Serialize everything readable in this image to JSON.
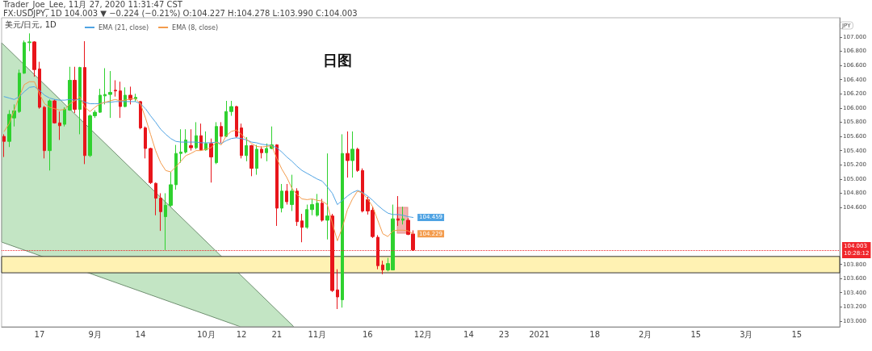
{
  "chart_data": {
    "type": "candlestick",
    "title": "日图",
    "legend_title": "美元/日元, 1D",
    "ylabel": "JPY",
    "annotations": [
      "Trader_Joe_Lee, 11月 27, 2020 11:31:47 CST",
      "FX:USDJPY, 1D 104.003 ▼ −0.224 (−0.21%) O:104.227 H:104.278 L:103.990 C:104.003"
    ],
    "categories": [
      null,
      null,
      null,
      null,
      null,
      null,
      null,
      "17",
      null,
      null,
      null,
      null,
      null,
      null,
      null,
      null,
      null,
      null,
      "9月",
      null,
      null,
      null,
      null,
      null,
      null,
      null,
      null,
      "14",
      null,
      null,
      null,
      null,
      null,
      null,
      null,
      null,
      null,
      null,
      null,
      null,
      "10月",
      null,
      null,
      null,
      null,
      null,
      null,
      "12",
      null,
      null,
      null,
      null,
      null,
      null,
      "21",
      null,
      null,
      null,
      null,
      null,
      null,
      null,
      "11月",
      null,
      null,
      null,
      null,
      null,
      null,
      null,
      null,
      null,
      "16",
      null,
      null,
      null,
      null,
      null,
      null,
      null,
      null,
      null,
      null,
      "12月",
      null,
      null,
      null,
      null,
      null,
      null,
      null,
      null,
      "14",
      null,
      null,
      null,
      null,
      null,
      null,
      "23",
      null,
      null,
      null,
      null,
      null,
      null,
      "2021",
      null,
      null,
      null,
      null,
      null,
      null,
      null,
      null,
      null,
      null,
      "18",
      null,
      null,
      null,
      null,
      null,
      null,
      null,
      null,
      null,
      "2月",
      null,
      null,
      null,
      null,
      null,
      null,
      null,
      null,
      null,
      "15",
      null,
      null,
      null,
      null,
      null,
      null,
      null,
      null,
      null,
      "3月",
      null,
      null,
      null,
      null,
      null,
      null,
      null,
      null,
      null,
      "15",
      null,
      null,
      null,
      null,
      null,
      null,
      null,
      null
    ],
    "ohlc": [
      [
        105.6,
        105.63,
        105.31,
        105.53
      ],
      [
        105.53,
        105.97,
        105.45,
        105.91
      ],
      [
        105.86,
        106.05,
        105.74,
        105.96
      ],
      [
        105.95,
        106.54,
        105.93,
        106.49
      ],
      [
        106.49,
        106.95,
        106.48,
        106.92
      ],
      [
        106.92,
        107.05,
        106.8,
        106.93
      ],
      [
        106.93,
        106.94,
        106.44,
        106.54
      ],
      [
        106.55,
        106.65,
        105.99,
        106.01
      ],
      [
        106.01,
        106.03,
        105.29,
        105.4
      ],
      [
        105.4,
        106.12,
        105.12,
        106.1
      ],
      [
        106.1,
        106.12,
        105.78,
        105.79
      ],
      [
        105.79,
        105.95,
        105.55,
        105.75
      ],
      [
        105.77,
        106.01,
        105.74,
        105.98
      ],
      [
        105.97,
        106.58,
        105.96,
        106.39
      ],
      [
        106.39,
        106.58,
        105.93,
        105.98
      ],
      [
        105.98,
        106.58,
        105.63,
        106.57
      ],
      [
        106.57,
        106.94,
        105.21,
        105.33
      ],
      [
        105.33,
        105.91,
        105.31,
        105.89
      ],
      [
        105.89,
        105.97,
        105.86,
        105.94
      ],
      [
        105.94,
        106.27,
        105.93,
        106.18
      ],
      [
        106.17,
        106.56,
        106.05,
        106.19
      ],
      [
        106.19,
        106.52,
        105.86,
        106.22
      ],
      [
        106.25,
        106.39,
        106.16,
        106.24
      ],
      [
        106.24,
        106.37,
        105.86,
        106.02
      ],
      [
        106.02,
        106.29,
        106.01,
        106.18
      ],
      [
        106.18,
        106.3,
        106.05,
        106.12
      ],
      [
        106.13,
        106.2,
        106.09,
        106.15
      ],
      [
        106.09,
        106.1,
        105.7,
        105.72
      ],
      [
        105.72,
        105.74,
        105.29,
        105.43
      ],
      [
        105.43,
        105.44,
        104.93,
        104.95
      ],
      [
        104.94,
        104.95,
        104.49,
        104.73
      ],
      [
        104.73,
        104.8,
        104.27,
        104.54
      ],
      [
        104.47,
        104.8,
        104.0,
        104.63
      ],
      [
        104.63,
        105.1,
        104.61,
        104.92
      ],
      [
        104.92,
        105.48,
        104.85,
        105.36
      ],
      [
        105.36,
        105.7,
        105.23,
        105.38
      ],
      [
        105.38,
        105.7,
        105.36,
        105.55
      ],
      [
        105.47,
        105.7,
        105.4,
        105.44
      ],
      [
        105.44,
        105.8,
        105.42,
        105.61
      ],
      [
        105.61,
        105.78,
        105.4,
        105.41
      ],
      [
        105.41,
        105.67,
        105.4,
        105.5
      ],
      [
        105.5,
        105.57,
        104.95,
        105.31
      ],
      [
        105.23,
        105.8,
        105.21,
        105.74
      ],
      [
        105.74,
        105.8,
        105.51,
        105.6
      ],
      [
        105.6,
        106.1,
        105.59,
        105.95
      ],
      [
        105.95,
        106.1,
        105.89,
        106.02
      ],
      [
        106.02,
        106.03,
        105.58,
        105.6
      ],
      [
        105.72,
        105.78,
        105.29,
        105.33
      ],
      [
        105.33,
        105.59,
        105.25,
        105.47
      ],
      [
        105.47,
        105.48,
        105.04,
        105.15
      ],
      [
        105.15,
        105.48,
        105.06,
        105.42
      ],
      [
        105.42,
        105.46,
        105.29,
        105.37
      ],
      [
        105.37,
        105.5,
        105.25,
        105.43
      ],
      [
        105.43,
        105.74,
        105.42,
        105.48
      ],
      [
        105.48,
        105.49,
        104.34,
        104.59
      ],
      [
        104.59,
        104.93,
        104.53,
        104.83
      ],
      [
        104.83,
        104.93,
        104.64,
        104.68
      ],
      [
        104.64,
        105.06,
        104.55,
        104.83
      ],
      [
        104.83,
        104.87,
        104.34,
        104.4
      ],
      [
        104.41,
        104.51,
        104.11,
        104.32
      ],
      [
        104.32,
        104.64,
        104.3,
        104.57
      ],
      [
        104.57,
        104.72,
        104.49,
        104.64
      ],
      [
        104.49,
        104.79,
        104.47,
        104.66
      ],
      [
        104.66,
        104.72,
        104.4,
        104.42
      ],
      [
        104.42,
        105.36,
        104.15,
        104.48
      ],
      [
        104.48,
        104.51,
        103.41,
        103.43
      ],
      [
        103.44,
        103.73,
        103.17,
        103.34
      ],
      [
        103.3,
        105.63,
        103.19,
        105.36
      ],
      [
        105.36,
        105.67,
        105.02,
        105.26
      ],
      [
        105.26,
        105.67,
        105.02,
        105.42
      ],
      [
        105.42,
        105.44,
        105.1,
        105.12
      ],
      [
        105.12,
        105.15,
        104.53,
        104.55
      ],
      [
        104.71,
        104.75,
        104.5,
        104.55
      ],
      [
        104.56,
        104.61,
        104.17,
        104.19
      ],
      [
        104.18,
        104.21,
        103.73,
        103.78
      ],
      [
        103.79,
        103.85,
        103.66,
        103.72
      ],
      [
        103.72,
        103.89,
        103.7,
        103.81
      ],
      [
        103.72,
        104.64,
        103.72,
        104.44
      ],
      [
        104.44,
        104.76,
        104.34,
        104.42
      ],
      [
        104.42,
        104.61,
        104.36,
        104.44
      ],
      [
        104.42,
        104.45,
        104.21,
        104.22
      ],
      [
        104.227,
        104.278,
        103.99,
        104.003
      ],
      null,
      null,
      null,
      null,
      null,
      null,
      null,
      null,
      null,
      null,
      null,
      null,
      null,
      null,
      null,
      null,
      null,
      null,
      null,
      null,
      null,
      null,
      null,
      null,
      null,
      null,
      null,
      null,
      null,
      null,
      null,
      null,
      null,
      null,
      null,
      null,
      null,
      null,
      null,
      null,
      null,
      null,
      null,
      null,
      null,
      null,
      null,
      null,
      null,
      null,
      null,
      null,
      null,
      null,
      null,
      null,
      null,
      null,
      null,
      null,
      null,
      null,
      null,
      null,
      null,
      null,
      null,
      null,
      null,
      null,
      null,
      null,
      null,
      null,
      null,
      null,
      null,
      null,
      null,
      null,
      null,
      null,
      null,
      null
    ],
    "colors": [
      "#e8151b",
      "#2fd12f",
      "#2fd12f",
      "#2fd12f",
      "#2fd12f",
      "#2fd12f",
      "#e8151b",
      "#e8151b",
      "#e8151b",
      "#2fd12f",
      "#e8151b",
      "#e8151b",
      "#2fd12f",
      "#2fd12f",
      "#e8151b",
      "#2fd12f",
      "#e8151b",
      "#2fd12f",
      "#2fd12f",
      "#2fd12f",
      "#2fd12f",
      "#2fd12f",
      "#e8151b",
      "#e8151b",
      "#2fd12f",
      "#e8151b",
      "#2fd12f",
      "#e8151b",
      "#e8151b",
      "#e8151b",
      "#e8151b",
      "#e8151b",
      "#2fd12f",
      "#2fd12f",
      "#2fd12f",
      "#2fd12f",
      "#2fd12f",
      "#e8151b",
      "#2fd12f",
      "#e8151b",
      "#2fd12f",
      "#e8151b",
      "#2fd12f",
      "#e8151b",
      "#2fd12f",
      "#2fd12f",
      "#e8151b",
      "#e8151b",
      "#2fd12f",
      "#e8151b",
      "#2fd12f",
      "#e8151b",
      "#2fd12f",
      "#2fd12f",
      "#e8151b",
      "#2fd12f",
      "#e8151b",
      "#2fd12f",
      "#e8151b",
      "#e8151b",
      "#2fd12f",
      "#2fd12f",
      "#2fd12f",
      "#e8151b",
      "#2fd12f",
      "#e8151b",
      "#e8151b",
      "#2fd12f",
      "#e8151b",
      "#2fd12f",
      "#e8151b",
      "#e8151b",
      "#e8151b",
      "#e8151b",
      "#e8151b",
      "#e8151b",
      "#2fd12f",
      "#2fd12f",
      "#e8151b",
      "#2fd12f",
      "#e8151b",
      "#e8151b",
      null,
      null,
      null,
      null,
      null,
      null,
      null,
      null,
      null,
      null,
      null,
      null,
      null,
      null,
      null,
      null,
      null,
      null,
      null,
      null,
      null,
      null,
      null,
      null,
      null,
      null,
      null,
      null,
      null,
      null,
      null,
      null,
      null,
      null,
      null,
      null,
      null,
      null,
      null,
      null,
      null,
      null,
      null,
      null,
      null,
      null,
      null,
      null,
      null,
      null,
      null,
      null,
      null,
      null,
      null,
      null,
      null,
      null,
      null,
      null,
      null,
      null,
      null,
      null,
      null,
      null,
      null,
      null,
      null,
      null,
      null,
      null,
      null,
      null,
      null,
      null,
      null,
      null,
      null,
      null,
      null,
      null,
      null,
      null
    ],
    "series": [
      {
        "name": "EMA (21, close)",
        "type": "line",
        "color": "#4fa3e3",
        "values": [
          106.16,
          106.14,
          106.12,
          106.16,
          106.23,
          106.29,
          106.3,
          106.25,
          106.18,
          106.14,
          106.12,
          106.11,
          106.11,
          106.12,
          106.11,
          106.12,
          106.08,
          106.06,
          106.06,
          106.06,
          106.08,
          106.08,
          106.09,
          106.09,
          106.09,
          106.09,
          106.09,
          106.06,
          105.99,
          105.89,
          105.8,
          105.7,
          105.63,
          105.57,
          105.53,
          105.52,
          105.52,
          105.52,
          105.52,
          105.51,
          105.51,
          105.51,
          105.52,
          105.5,
          105.54,
          105.57,
          105.58,
          105.57,
          105.55,
          105.52,
          105.51,
          105.49,
          105.48,
          105.47,
          105.44,
          105.38,
          105.31,
          105.25,
          105.18,
          105.12,
          105.08,
          105.04,
          105.0,
          104.97,
          104.89,
          104.8,
          104.64,
          104.7,
          104.76,
          104.81,
          104.84,
          104.81,
          104.76,
          104.7,
          104.63,
          104.57,
          104.52,
          104.5,
          104.5,
          104.49,
          104.47,
          104.459,
          null,
          null,
          null,
          null,
          null,
          null,
          null,
          null,
          null,
          null,
          null,
          null,
          null,
          null,
          null,
          null,
          null,
          null,
          null,
          null,
          null,
          null,
          null,
          null,
          null,
          null,
          null,
          null,
          null,
          null,
          null,
          null,
          null,
          null,
          null,
          null,
          null,
          null,
          null,
          null,
          null,
          null,
          null,
          null,
          null,
          null,
          null,
          null,
          null,
          null,
          null,
          null,
          null,
          null,
          null,
          null,
          null,
          null,
          null,
          null,
          null,
          null,
          null,
          null,
          null,
          null,
          null,
          null,
          null,
          null,
          null,
          null,
          null,
          null,
          null,
          null,
          null,
          null,
          null,
          null,
          null,
          null,
          null,
          null
        ],
        "value_labels": [
          null,
          null,
          null,
          null,
          null,
          null,
          null,
          null,
          null,
          null,
          null,
          null,
          null,
          null,
          null,
          null,
          null,
          null,
          null,
          null,
          null,
          null,
          null,
          null,
          null,
          null,
          null,
          null,
          null,
          null,
          null,
          null,
          null,
          null,
          null,
          null,
          null,
          null,
          null,
          null,
          null,
          null,
          null,
          null,
          null,
          null,
          null,
          null,
          null,
          null,
          null,
          null,
          null,
          null,
          null,
          null,
          null,
          null,
          null,
          null,
          null,
          null,
          null,
          null,
          null,
          null,
          null,
          null,
          null,
          null,
          null,
          null,
          null,
          null,
          null,
          null,
          null,
          null,
          null,
          null,
          null,
          "104.459",
          null,
          null,
          null,
          null,
          null,
          null,
          null,
          null,
          null,
          null,
          null,
          null,
          null,
          null,
          null,
          null,
          null,
          null,
          null,
          null,
          null,
          null,
          null,
          null,
          null,
          null,
          null,
          null,
          null,
          null,
          null,
          null,
          null,
          null,
          null,
          null,
          null,
          null,
          null,
          null,
          null,
          null,
          null,
          null,
          null,
          null,
          null,
          null,
          null,
          null,
          null,
          null,
          null,
          null,
          null,
          null,
          null,
          null,
          null,
          null,
          null,
          null,
          null,
          null,
          null,
          null,
          null,
          null,
          null,
          null,
          null,
          null,
          null,
          null,
          null,
          null,
          null,
          null,
          null,
          null,
          null,
          null,
          null,
          null
        ]
      },
      {
        "name": "EMA (8, close)",
        "type": "line",
        "color": "#f39b4c",
        "values": [
          105.67,
          105.78,
          105.97,
          106.16,
          106.33,
          106.37,
          106.37,
          106.2,
          106.06,
          106.01,
          105.99,
          105.97,
          105.98,
          106.06,
          106.1,
          106.16,
          106.01,
          105.95,
          106.01,
          106.06,
          106.08,
          106.1,
          106.12,
          106.1,
          106.11,
          106.13,
          106.13,
          106.06,
          105.86,
          105.63,
          105.4,
          105.23,
          105.12,
          105.1,
          105.17,
          105.25,
          105.33,
          105.36,
          105.4,
          105.4,
          105.42,
          105.44,
          105.52,
          105.48,
          105.61,
          105.67,
          105.69,
          105.63,
          105.56,
          105.5,
          105.46,
          105.45,
          105.46,
          105.47,
          105.29,
          105.14,
          105.02,
          104.87,
          104.78,
          104.72,
          104.71,
          104.72,
          104.7,
          104.69,
          104.64,
          104.38,
          104.13,
          104.32,
          104.57,
          104.72,
          104.83,
          104.8,
          104.72,
          104.61,
          104.42,
          104.23,
          104.19,
          104.27,
          104.28,
          104.28,
          104.27,
          104.229,
          null,
          null,
          null,
          null,
          null,
          null,
          null,
          null,
          null,
          null,
          null,
          null,
          null,
          null,
          null,
          null,
          null,
          null,
          null,
          null,
          null,
          null,
          null,
          null,
          null,
          null,
          null,
          null,
          null,
          null,
          null,
          null,
          null,
          null,
          null,
          null,
          null,
          null,
          null,
          null,
          null,
          null,
          null,
          null,
          null,
          null,
          null,
          null,
          null,
          null,
          null,
          null,
          null,
          null,
          null,
          null,
          null,
          null,
          null,
          null,
          null,
          null,
          null,
          null,
          null,
          null,
          null,
          null,
          null,
          null,
          null,
          null,
          null,
          null,
          null,
          null,
          null,
          null,
          null,
          null,
          null,
          null,
          null,
          null
        ],
        "value_labels": [
          null,
          null,
          null,
          null,
          null,
          null,
          null,
          null,
          null,
          null,
          null,
          null,
          null,
          null,
          null,
          null,
          null,
          null,
          null,
          null,
          null,
          null,
          null,
          null,
          null,
          null,
          null,
          null,
          null,
          null,
          null,
          null,
          null,
          null,
          null,
          null,
          null,
          null,
          null,
          null,
          null,
          null,
          null,
          null,
          null,
          null,
          null,
          null,
          null,
          null,
          null,
          null,
          null,
          null,
          null,
          null,
          null,
          null,
          null,
          null,
          null,
          null,
          null,
          null,
          null,
          null,
          null,
          null,
          null,
          null,
          null,
          null,
          null,
          null,
          null,
          null,
          null,
          null,
          null,
          null,
          null,
          "104.229",
          null,
          null,
          null,
          null,
          null,
          null,
          null,
          null,
          null,
          null,
          null,
          null,
          null,
          null,
          null,
          null,
          null,
          null,
          null,
          null,
          null,
          null,
          null,
          null,
          null,
          null,
          null,
          null,
          null,
          null,
          null,
          null,
          null,
          null,
          null,
          null,
          null,
          null,
          null,
          null,
          null,
          null,
          null,
          null,
          null,
          null,
          null,
          null,
          null,
          null,
          null,
          null,
          null,
          null,
          null,
          null,
          null,
          null,
          null,
          null,
          null,
          null,
          null,
          null,
          null,
          null,
          null,
          null,
          null,
          null,
          null,
          null,
          null,
          null,
          null,
          null,
          null,
          null,
          null,
          null,
          null,
          null,
          null,
          null
        ]
      }
    ],
    "ylim": [
      102.92,
      107.27
    ],
    "yticks": [
      {
        "value": 103,
        "label": "103.000"
      },
      {
        "value": 103.2,
        "label": "103.200"
      },
      {
        "value": 103.4,
        "label": "103.400"
      },
      {
        "value": 103.6,
        "label": "103.600"
      },
      {
        "value": 103.8,
        "label": "103.800"
      },
      {
        "value": 104.6,
        "label": "104.600"
      },
      {
        "value": 104.8,
        "label": "104.800"
      },
      {
        "value": 105,
        "label": "105.000"
      },
      {
        "value": 105.2,
        "label": "105.200"
      },
      {
        "value": 105.4,
        "label": "105.400"
      },
      {
        "value": 105.6,
        "label": "105.600"
      },
      {
        "value": 105.8,
        "label": "105.800"
      },
      {
        "value": 106,
        "label": "106.000"
      },
      {
        "value": 106.2,
        "label": "106.200"
      },
      {
        "value": 106.4,
        "label": "106.400"
      },
      {
        "value": 106.6,
        "label": "106.600"
      },
      {
        "value": 106.8,
        "label": "106.800"
      },
      {
        "value": 107,
        "label": "107.000"
      }
    ],
    "ref_lines": [
      {
        "axis": "y",
        "value": 104.003,
        "label": "104.003\n10:28:12",
        "color": "#f0262b",
        "line_style": "dotted"
      }
    ],
    "bands": [
      {
        "axis": "y",
        "from": 103.68,
        "to": 103.91,
        "color": "#fff2b3"
      }
    ],
    "legend": "top left",
    "grid": false,
    "marker": "none"
  }
}
